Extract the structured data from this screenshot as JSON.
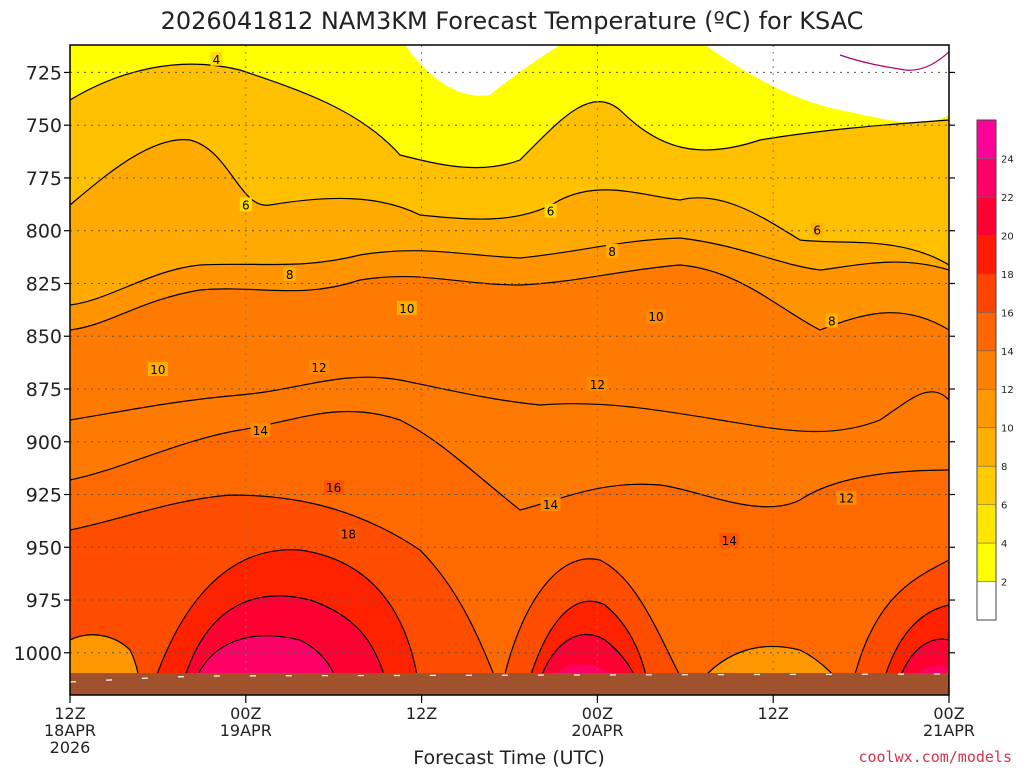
{
  "chart_data": {
    "type": "heatmap",
    "title": "2026041812 NAM3KM Forecast Temperature (ºC) for KSAC",
    "xlabel": "Forecast Time (UTC)",
    "ylabel": "",
    "y_ticks": [
      "725",
      "750",
      "775",
      "800",
      "825",
      "850",
      "875",
      "900",
      "925",
      "950",
      "975",
      "1000"
    ],
    "y_values": [
      725,
      750,
      775,
      800,
      825,
      850,
      875,
      900,
      925,
      950,
      975,
      1000
    ],
    "ylim": [
      712,
      1020
    ],
    "y_inverted": true,
    "x_ticks": [
      {
        "hour": 0,
        "lines": [
          "12Z",
          "18APR",
          "2026"
        ]
      },
      {
        "hour": 12,
        "lines": [
          "00Z",
          "19APR"
        ]
      },
      {
        "hour": 24,
        "lines": [
          "12Z"
        ]
      },
      {
        "hour": 36,
        "lines": [
          "00Z",
          "20APR"
        ]
      },
      {
        "hour": 48,
        "lines": [
          "12Z"
        ]
      },
      {
        "hour": 60,
        "lines": [
          "00Z",
          "21APR"
        ]
      }
    ],
    "xlim_hours": [
      0,
      60
    ],
    "colorbar": {
      "levels": [
        2,
        4,
        6,
        8,
        10,
        12,
        14,
        16,
        18,
        20,
        22,
        24
      ],
      "tick_labels": [
        "2",
        "4",
        "6",
        "8",
        "10",
        "12",
        "14",
        "16",
        "18",
        "20",
        "22",
        "24"
      ],
      "colors": [
        "#ffffff",
        "#ffff00",
        "#ffe600",
        "#ffcc00",
        "#ffb000",
        "#ff9800",
        "#ff8000",
        "#ff6600",
        "#ff4400",
        "#ff1a00",
        "#ff0033",
        "#ff0066",
        "#ff0099"
      ]
    },
    "contour_labels": [
      {
        "value": "4",
        "hour": 10.0,
        "p": 719
      },
      {
        "value": "6",
        "hour": 12.0,
        "p": 788
      },
      {
        "value": "6",
        "hour": 32.8,
        "p": 791
      },
      {
        "value": "6",
        "hour": 51.0,
        "p": 800
      },
      {
        "value": "8",
        "hour": 15.0,
        "p": 821
      },
      {
        "value": "8",
        "hour": 37.0,
        "p": 810
      },
      {
        "value": "8",
        "hour": 52.0,
        "p": 843
      },
      {
        "value": "10",
        "hour": 6.0,
        "p": 866
      },
      {
        "value": "10",
        "hour": 23.0,
        "p": 837
      },
      {
        "value": "10",
        "hour": 40.0,
        "p": 841
      },
      {
        "value": "12",
        "hour": 17.0,
        "p": 865
      },
      {
        "value": "12",
        "hour": 36.0,
        "p": 873
      },
      {
        "value": "12",
        "hour": 53.0,
        "p": 927
      },
      {
        "value": "14",
        "hour": 13.0,
        "p": 895
      },
      {
        "value": "14",
        "hour": 32.8,
        "p": 930
      },
      {
        "value": "14",
        "hour": 45.0,
        "p": 947
      },
      {
        "value": "16",
        "hour": 18.0,
        "p": 922
      },
      {
        "value": "18",
        "hour": 19.0,
        "p": 944
      }
    ],
    "surface_color": "#a0522d",
    "series": []
  },
  "credit": "coolwx.com/models"
}
